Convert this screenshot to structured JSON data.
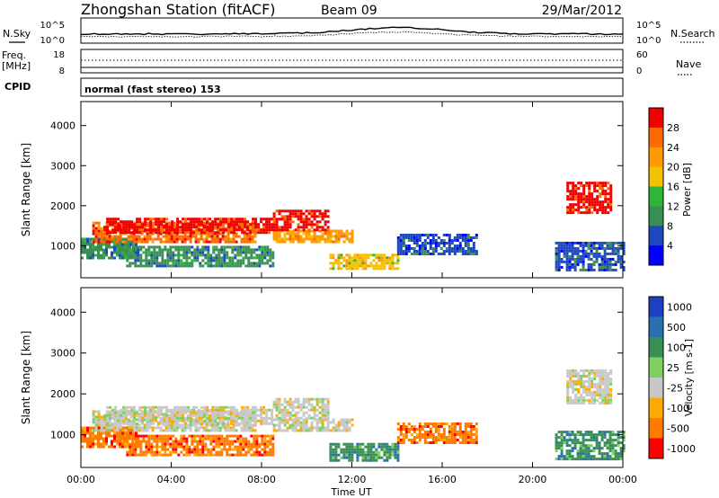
{
  "header": {
    "title": "Zhongshan Station (fitACF)",
    "beam": "Beam 09",
    "date": "29/Mar/2012"
  },
  "noise_panel": {
    "left_label": "N.Sky",
    "left_ticks": [
      "10^5",
      "10^0"
    ],
    "right_ticks": [
      "10^5",
      "10^0"
    ],
    "right_label": "N.Search"
  },
  "freq_panel": {
    "left_label_1": "Freq.",
    "left_label_2": "[MHz]",
    "left_ticks": [
      "18",
      "8"
    ],
    "right_ticks": [
      "60",
      "0"
    ],
    "right_label": "Nave"
  },
  "cpid": {
    "label": "CPID",
    "program": "normal (fast stereo) 153"
  },
  "chart_data": [
    {
      "type": "heatmap",
      "name": "power",
      "ylabel": "Slant Range [km]",
      "xlabel": "",
      "y_ticks": [
        "1000",
        "2000",
        "3000",
        "4000"
      ],
      "ylim": [
        200,
        4600
      ],
      "colorbar_label": "Power [dB]",
      "colorbar_ticks": [
        "28",
        "24",
        "20",
        "16",
        "12",
        "8",
        "4"
      ],
      "colorbar_colors": [
        "#f00000",
        "#ff6a00",
        "#ff9a00",
        "#f4c300",
        "#2fb53a",
        "#3a8f55",
        "#1e48c2",
        "#0000ff"
      ],
      "regions": [
        {
          "t0": 0.0,
          "t1": 2.5,
          "r0": 700,
          "r1": 1200,
          "level": 5
        },
        {
          "t0": 0.5,
          "t1": 7.7,
          "r0": 1100,
          "r1": 1600,
          "level": 1
        },
        {
          "t0": 1.0,
          "t1": 8.5,
          "r0": 1300,
          "r1": 1700,
          "level": 0
        },
        {
          "t0": 2.0,
          "t1": 8.5,
          "r0": 500,
          "r1": 1000,
          "level": 5
        },
        {
          "t0": 8.5,
          "t1": 12.0,
          "r0": 1100,
          "r1": 1400,
          "level": 2
        },
        {
          "t0": 8.5,
          "t1": 11.0,
          "r0": 1400,
          "r1": 1900,
          "level": 0
        },
        {
          "t0": 11.0,
          "t1": 14.0,
          "r0": 400,
          "r1": 800,
          "level": 3
        },
        {
          "t0": 14.0,
          "t1": 17.5,
          "r0": 800,
          "r1": 1300,
          "level": 6
        },
        {
          "t0": 21.0,
          "t1": 24.0,
          "r0": 400,
          "r1": 1100,
          "level": 6
        },
        {
          "t0": 21.5,
          "t1": 23.5,
          "r0": 1800,
          "r1": 2600,
          "level": 0
        }
      ]
    },
    {
      "type": "heatmap",
      "name": "velocity",
      "ylabel": "Slant Range [km]",
      "xlabel": "Time UT",
      "x_ticks": [
        "00:00",
        "04:00",
        "08:00",
        "12:00",
        "16:00",
        "20:00",
        "00:00"
      ],
      "xlim": [
        0,
        24
      ],
      "y_ticks": [
        "1000",
        "2000",
        "3000",
        "4000"
      ],
      "ylim": [
        200,
        4600
      ],
      "colorbar_label": "Velocity [m s-1]",
      "colorbar_ticks": [
        "1000",
        "500",
        "100",
        "25",
        "-25",
        "-100",
        "-500",
        "-1000"
      ],
      "colorbar_colors": [
        "#1e3fc4",
        "#2a6fb0",
        "#3a8f55",
        "#7dd060",
        "#c8c8c8",
        "#ffaa00",
        "#ff7a00",
        "#ff0000"
      ],
      "regions": [
        {
          "t0": 0.0,
          "t1": 2.5,
          "r0": 700,
          "r1": 1200,
          "level": 6
        },
        {
          "t0": 0.5,
          "t1": 7.7,
          "r0": 1100,
          "r1": 1600,
          "level": 4
        },
        {
          "t0": 1.0,
          "t1": 8.5,
          "r0": 1300,
          "r1": 1700,
          "level": 4
        },
        {
          "t0": 2.0,
          "t1": 8.5,
          "r0": 500,
          "r1": 1000,
          "level": 6
        },
        {
          "t0": 8.5,
          "t1": 12.0,
          "r0": 1100,
          "r1": 1400,
          "level": 4
        },
        {
          "t0": 8.5,
          "t1": 11.0,
          "r0": 1400,
          "r1": 1900,
          "level": 4
        },
        {
          "t0": 11.0,
          "t1": 14.0,
          "r0": 400,
          "r1": 800,
          "level": 2
        },
        {
          "t0": 14.0,
          "t1": 17.5,
          "r0": 800,
          "r1": 1300,
          "level": 6
        },
        {
          "t0": 21.0,
          "t1": 24.0,
          "r0": 400,
          "r1": 1100,
          "level": 2
        },
        {
          "t0": 21.5,
          "t1": 23.5,
          "r0": 1800,
          "r1": 2600,
          "level": 4
        }
      ]
    }
  ]
}
